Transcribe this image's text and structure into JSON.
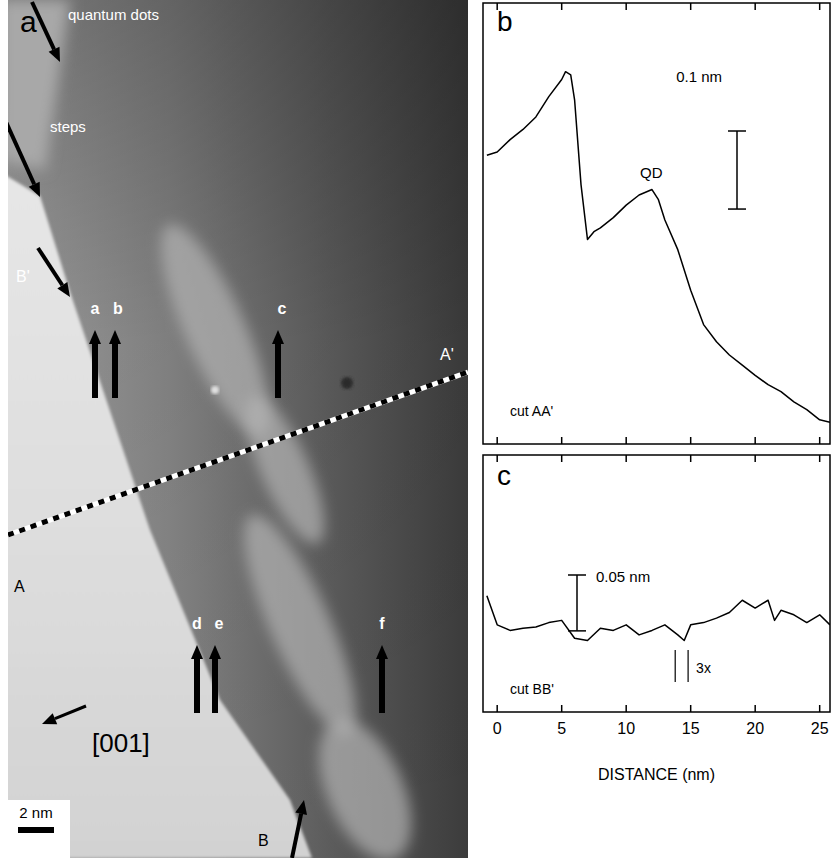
{
  "image_panel": {
    "panel_label": "a",
    "quantum_dots": "quantum dots",
    "steps": "steps",
    "arrow_labels": [
      "a",
      "b",
      "c",
      "d",
      "e",
      "f"
    ],
    "cut_labels": {
      "A": "A",
      "A_prime": "A'",
      "B": "B",
      "B_prime": "B'"
    },
    "direction": "[001]",
    "scale_bar": {
      "value": 2,
      "label": "2 nm"
    }
  },
  "chart_data": [
    {
      "type": "line",
      "panel_label": "b",
      "color": "#000000",
      "x": [
        -0.8,
        0,
        1,
        2,
        3,
        4,
        5,
        5.3,
        5.7,
        6,
        6.5,
        7,
        7.5,
        8,
        9,
        10,
        11,
        12,
        12.5,
        13,
        14,
        15,
        16,
        17,
        18,
        19,
        20,
        21,
        22,
        23,
        24,
        25,
        25.8
      ],
      "values": [
        0.37,
        0.374,
        0.39,
        0.403,
        0.419,
        0.445,
        0.467,
        0.477,
        0.473,
        0.441,
        0.332,
        0.262,
        0.272,
        0.277,
        0.29,
        0.306,
        0.319,
        0.326,
        0.313,
        0.287,
        0.249,
        0.197,
        0.153,
        0.131,
        0.114,
        0.101,
        0.088,
        0.076,
        0.067,
        0.054,
        0.044,
        0.031,
        0.028
      ],
      "xlim": [
        -1.1,
        25.8
      ],
      "ylim": [
        0,
        0.565
      ],
      "xticks": [
        0,
        5,
        10,
        15,
        20,
        25
      ],
      "tick_labels": false,
      "annotations": [
        "cut AA'",
        "QD"
      ],
      "scale_bar": {
        "value": 0.1,
        "label": "0.1 nm"
      }
    },
    {
      "type": "line",
      "panel_label": "c",
      "color": "#000000",
      "x": [
        -0.8,
        0,
        1,
        2,
        3,
        4,
        5,
        6,
        7,
        8,
        9,
        10,
        11,
        12,
        13,
        14,
        14.5,
        15,
        16,
        17,
        18,
        19,
        20,
        21,
        21.5,
        22,
        23,
        24,
        25,
        25.8
      ],
      "values": [
        0.104,
        0.078,
        0.073,
        0.075,
        0.076,
        0.08,
        0.082,
        0.066,
        0.064,
        0.075,
        0.073,
        0.078,
        0.069,
        0.073,
        0.078,
        0.069,
        0.064,
        0.078,
        0.08,
        0.084,
        0.089,
        0.1,
        0.093,
        0.1,
        0.082,
        0.091,
        0.087,
        0.08,
        0.087,
        0.078
      ],
      "xlim": [
        -1.1,
        25.8
      ],
      "ylim": [
        0,
        0.23
      ],
      "xticks": [
        0,
        5,
        10,
        15,
        20,
        25
      ],
      "tick_labels": "x",
      "xlabel": "DISTANCE (nm)",
      "annotations": [
        "cut BB'"
      ],
      "marker_pair": {
        "text": "3x",
        "x": [
          13.8,
          14.8
        ]
      },
      "scale_bar": {
        "value": 0.05,
        "label": "0.05 nm"
      }
    }
  ]
}
